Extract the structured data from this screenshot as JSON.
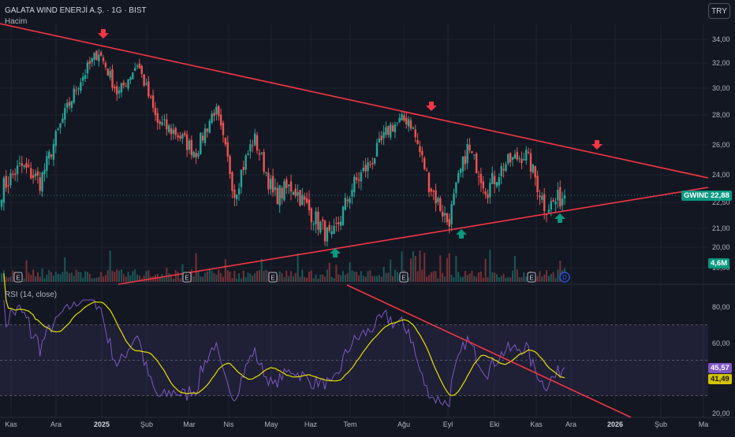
{
  "header": {
    "title": "GALATA WIND ENERJİ A.Ş. · 1G · BIST",
    "volume_label": "Hacim",
    "currency_button": "TRY"
  },
  "rsi": {
    "title": "RSI (14, close)",
    "value_rsi": "45,57",
    "value_ma": "41,49"
  },
  "price_tags": {
    "symbol": "GWIND",
    "last_price": "22,88",
    "volume": "4,6M"
  },
  "price_axis": {
    "labels": [
      "34,00",
      "32,00",
      "30,00",
      "28,00",
      "26,00",
      "24,00",
      "22,50",
      "21,00",
      "20,00",
      "19,00"
    ]
  },
  "rsi_axis": {
    "labels": [
      "80,00",
      "60,00",
      "20,00"
    ]
  },
  "time_axis": {
    "labels": [
      "Kas",
      "Ara",
      "2025",
      "Şub",
      "Mar",
      "Nis",
      "May",
      "Haz",
      "Tem",
      "Ağu",
      "Eyl",
      "Eki",
      "Kas",
      "Ara",
      "2026",
      "Şub",
      "Ma"
    ],
    "bold": [
      "2025",
      "2026"
    ]
  },
  "event_markers": {
    "label": "E",
    "dividend_label": "D"
  },
  "colors": {
    "background": "#131722",
    "up": "#26a69a",
    "down": "#ef5350",
    "trendline": "#f23645",
    "arrow_up": "#089981",
    "arrow_down": "#f23645",
    "rsi_line": "#7e57c2",
    "rsi_ma": "#e8e000",
    "rsi_band": "#7e57c2"
  },
  "chart_data": {
    "type": "candlestick",
    "anchors": [
      [
        "Kas",
        23.2
      ],
      [
        "Kas",
        24.6
      ],
      [
        "Ara",
        23.6
      ],
      [
        "Ara",
        27.2
      ],
      [
        "Ara",
        30.5
      ],
      [
        "2025",
        33.0
      ],
      [
        "2025",
        29.5
      ],
      [
        "2025",
        32.0
      ],
      [
        "Şub",
        27.5
      ],
      [
        "Şub",
        26.8
      ],
      [
        "Mar",
        25.5
      ],
      [
        "Mar",
        28.5
      ],
      [
        "Nis",
        23.0
      ],
      [
        "Nis",
        26.5
      ],
      [
        "May",
        22.8
      ],
      [
        "May",
        23.4
      ],
      [
        "Haz",
        21.8
      ],
      [
        "Haz",
        20.3
      ],
      [
        "Tem",
        23.2
      ],
      [
        "Tem",
        24.8
      ],
      [
        "Ağu",
        27.2
      ],
      [
        "Ağu",
        27.8
      ],
      [
        "Eyl",
        23.6
      ],
      [
        "Eyl",
        21.3
      ],
      [
        "Eyl",
        25.8
      ],
      [
        "Eki",
        23.2
      ],
      [
        "Eki",
        24.8
      ],
      [
        "Kas",
        25.4
      ],
      [
        "Kas",
        22.2
      ],
      [
        "Kas",
        22.88
      ]
    ],
    "price_range": [
      19.0,
      35.0
    ],
    "rsi_range": [
      20,
      85
    ],
    "rsi_levels": [
      70,
      50,
      30
    ],
    "grid": true
  }
}
